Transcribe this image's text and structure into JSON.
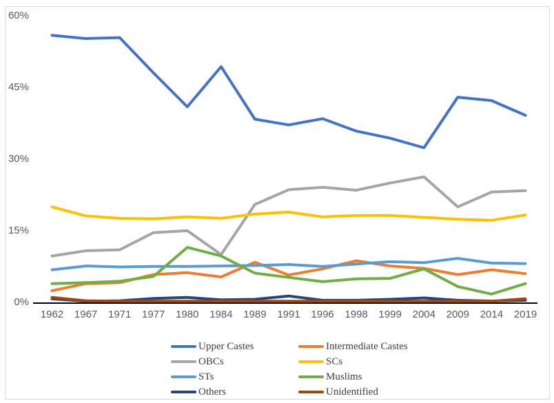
{
  "chart_data": {
    "type": "line",
    "title": "",
    "xlabel": "",
    "ylabel": "",
    "grid": false,
    "legend_position": "bottom",
    "categories": [
      "1962",
      "1967",
      "1971",
      "1977",
      "1980",
      "1984",
      "1989",
      "1991",
      "1996",
      "1998",
      "1999",
      "2004",
      "2009",
      "2014",
      "2019"
    ],
    "y_axis": {
      "ticks": [
        "0%",
        "15%",
        "30%",
        "45%",
        "60%"
      ],
      "tick_values": [
        0,
        15,
        30,
        45,
        60
      ],
      "min": 0,
      "max": 60
    },
    "series": [
      {
        "name": "Upper Castes",
        "color": "#4472C4",
        "values": [
          55.9,
          55.2,
          55.4,
          48.0,
          40.9,
          49.3,
          38.3,
          37.1,
          38.4,
          35.8,
          34.3,
          32.3,
          42.9,
          42.2,
          39.1
        ]
      },
      {
        "name": "Intermediate Castes",
        "color": "#ED7D31",
        "values": [
          2.3,
          3.8,
          4.0,
          5.7,
          6.1,
          5.2,
          8.3,
          5.6,
          6.9,
          8.6,
          7.5,
          7.0,
          5.7,
          6.7,
          5.9
        ]
      },
      {
        "name": "OBCs",
        "color": "#A5A5A5",
        "values": [
          9.6,
          10.7,
          10.9,
          14.5,
          14.9,
          9.9,
          20.4,
          23.5,
          24.0,
          23.4,
          24.9,
          26.2,
          19.9,
          23.0,
          23.3
        ]
      },
      {
        "name": "SCs",
        "color": "#FFC000",
        "values": [
          19.9,
          18.0,
          17.5,
          17.4,
          17.8,
          17.5,
          18.4,
          18.8,
          17.8,
          18.1,
          18.1,
          17.7,
          17.3,
          17.1,
          18.2
        ]
      },
      {
        "name": "STs",
        "color": "#5B9BD5",
        "values": [
          6.7,
          7.5,
          7.3,
          7.4,
          7.4,
          7.5,
          7.6,
          7.8,
          7.4,
          7.9,
          8.4,
          8.2,
          9.1,
          8.1,
          8.0
        ]
      },
      {
        "name": "Muslims",
        "color": "#70AD47",
        "values": [
          3.8,
          4.0,
          4.3,
          5.3,
          11.4,
          9.6,
          6.0,
          5.1,
          4.2,
          4.8,
          4.9,
          6.9,
          3.2,
          1.6,
          3.8
        ]
      },
      {
        "name": "Others",
        "color": "#264478",
        "values": [
          0.6,
          0.1,
          0.2,
          0.7,
          0.9,
          0.4,
          0.5,
          1.2,
          0.3,
          0.3,
          0.5,
          0.8,
          0.3,
          0.15,
          0.3
        ]
      },
      {
        "name": "Unidentified",
        "color": "#9E480E",
        "values": [
          0.9,
          0.2,
          0.1,
          0.1,
          0.1,
          0.1,
          0.1,
          0.1,
          0.1,
          0.1,
          0.1,
          0.1,
          0.1,
          0.1,
          0.6
        ]
      }
    ],
    "axis_color": "#000000",
    "tick_label_color": "#595959",
    "legend_text_color": "#404040",
    "border_color": "#D9D9D9"
  }
}
